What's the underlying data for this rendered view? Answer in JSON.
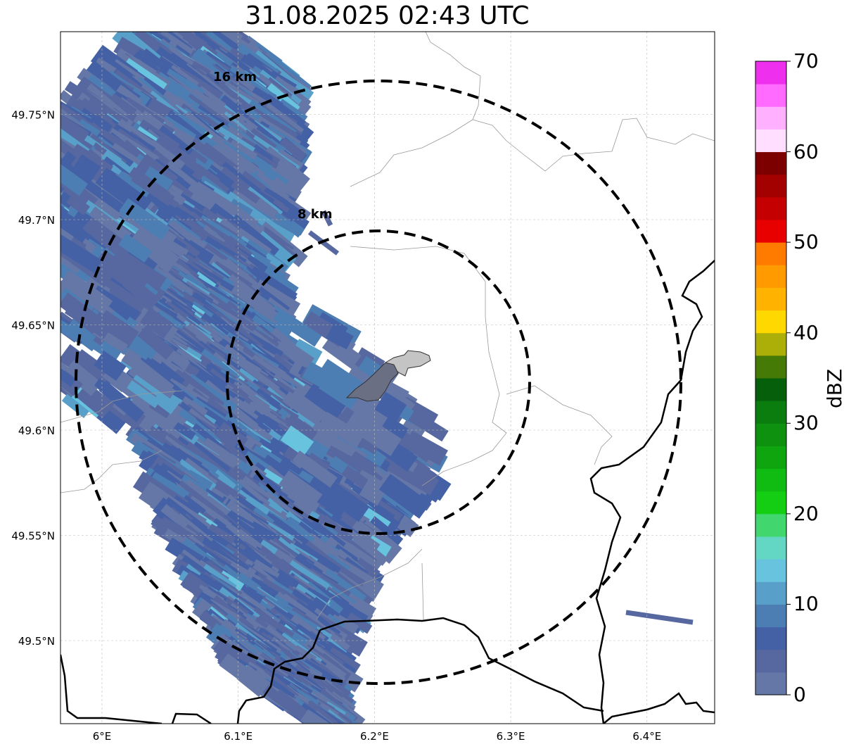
{
  "title": "31.08.2025 02:43 UTC",
  "map": {
    "lon_ticks": [
      6.0,
      6.1,
      6.2,
      6.3,
      6.4
    ],
    "lon_tick_labels": [
      "6°E",
      "6.1°E",
      "6.2°E",
      "6.3°E",
      "6.4°E"
    ],
    "lat_ticks": [
      49.5,
      49.55,
      49.6,
      49.65,
      49.7,
      49.75
    ],
    "lat_tick_labels": [
      "49.5°N",
      "49.55°N",
      "49.6°N",
      "49.65°N",
      "49.7°N",
      "49.75°N"
    ],
    "extent_lon": [
      5.97,
      6.45
    ],
    "extent_lat": [
      49.46,
      49.79
    ],
    "gridlines": true,
    "range_rings": [
      {
        "label": "8 km",
        "radius_km": 8
      },
      {
        "label": "16 km",
        "radius_km": 16
      }
    ],
    "ring_center_lon": 6.205,
    "ring_center_lat": 49.623
  },
  "colorbar": {
    "label": "dBZ",
    "min": 0,
    "max": 70,
    "tick_values": [
      0,
      10,
      20,
      30,
      40,
      50,
      60,
      70
    ],
    "tick_labels": [
      "0",
      "10",
      "20",
      "30",
      "40",
      "50",
      "60",
      "70"
    ],
    "colors": [
      "#6577a6",
      "#56689f",
      "#4461a6",
      "#4c7db3",
      "#58a0c9",
      "#68c3df",
      "#63d6c4",
      "#42d66e",
      "#14ce14",
      "#10bb12",
      "#0fa50f",
      "#0e910e",
      "#0b7c0e",
      "#06600b",
      "#457a07",
      "#acaf08",
      "#ffd800",
      "#ffb300",
      "#ff9a00",
      "#ff7b00",
      "#e80000",
      "#c40000",
      "#a30000",
      "#7d0000",
      "#ffdeff",
      "#ffb0ff",
      "#ff6bff",
      "#ee30ee"
    ]
  }
}
